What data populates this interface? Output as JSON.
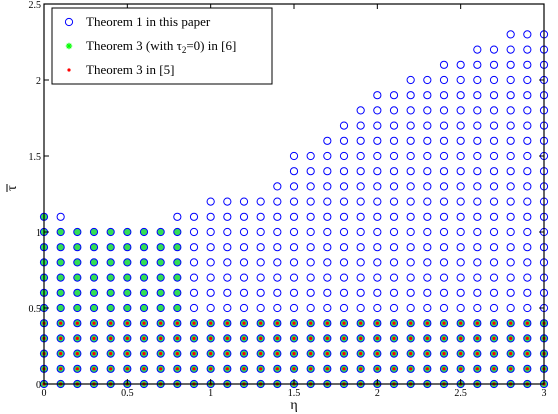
{
  "chart_data": {
    "type": "scatter",
    "xlabel": "η",
    "ylabel": "τ",
    "ylabel_bar": true,
    "xlim": [
      0,
      3
    ],
    "ylim": [
      0,
      2.5
    ],
    "grid": false,
    "legend_position": "top-left",
    "x_ticks": [
      "0",
      "0.5",
      "1",
      "1.5",
      "2",
      "2.5",
      "3"
    ],
    "y_ticks": [
      "0",
      "0.5",
      "1",
      "1.5",
      "2",
      "2.5"
    ],
    "x_tick_values": [
      0,
      0.5,
      1,
      1.5,
      2,
      2.5,
      3
    ],
    "y_tick_values": [
      0,
      0.5,
      1,
      1.5,
      2,
      2.5
    ],
    "grid_step": 0.1,
    "series": [
      {
        "name": "Theorem 1 in this paper",
        "label_parts": [
          "Theorem 1 in this paper"
        ],
        "marker": "circle-open",
        "color": "#0000ff",
        "max_tau_by_eta": [
          1.1,
          1.1,
          1.0,
          1.0,
          1.0,
          1.0,
          1.0,
          1.0,
          1.1,
          1.1,
          1.2,
          1.2,
          1.2,
          1.2,
          1.3,
          1.5,
          1.5,
          1.6,
          1.7,
          1.8,
          1.9,
          1.9,
          2.0,
          2.0,
          2.1,
          2.1,
          2.2,
          2.2,
          2.3,
          2.3,
          2.3
        ]
      },
      {
        "name": "Theorem 3 (with τ2=0) in [6]",
        "label_parts": [
          "Theorem 3 (with τ",
          "2",
          "=0) in [6]"
        ],
        "marker": "star",
        "color": "#00ff00",
        "fill": "#33dd55",
        "max_tau_by_eta": [
          1.1,
          1.0,
          1.0,
          1.0,
          1.0,
          1.0,
          1.0,
          1.0,
          1.0,
          0.4,
          0.4,
          0.4,
          0.4,
          0.4,
          0.4,
          0.4,
          0.4,
          0.4,
          0.4,
          0.4,
          0.4,
          0.4,
          0.4,
          0.4,
          0.4,
          0.4,
          0.4,
          0.4,
          0.4,
          0.4,
          0.4
        ]
      },
      {
        "name": "Theorem 3 in [5]",
        "label_parts": [
          "Theorem 3 in [5]"
        ],
        "marker": "dot",
        "color": "#ff0000",
        "max_tau": 0.4
      }
    ]
  }
}
